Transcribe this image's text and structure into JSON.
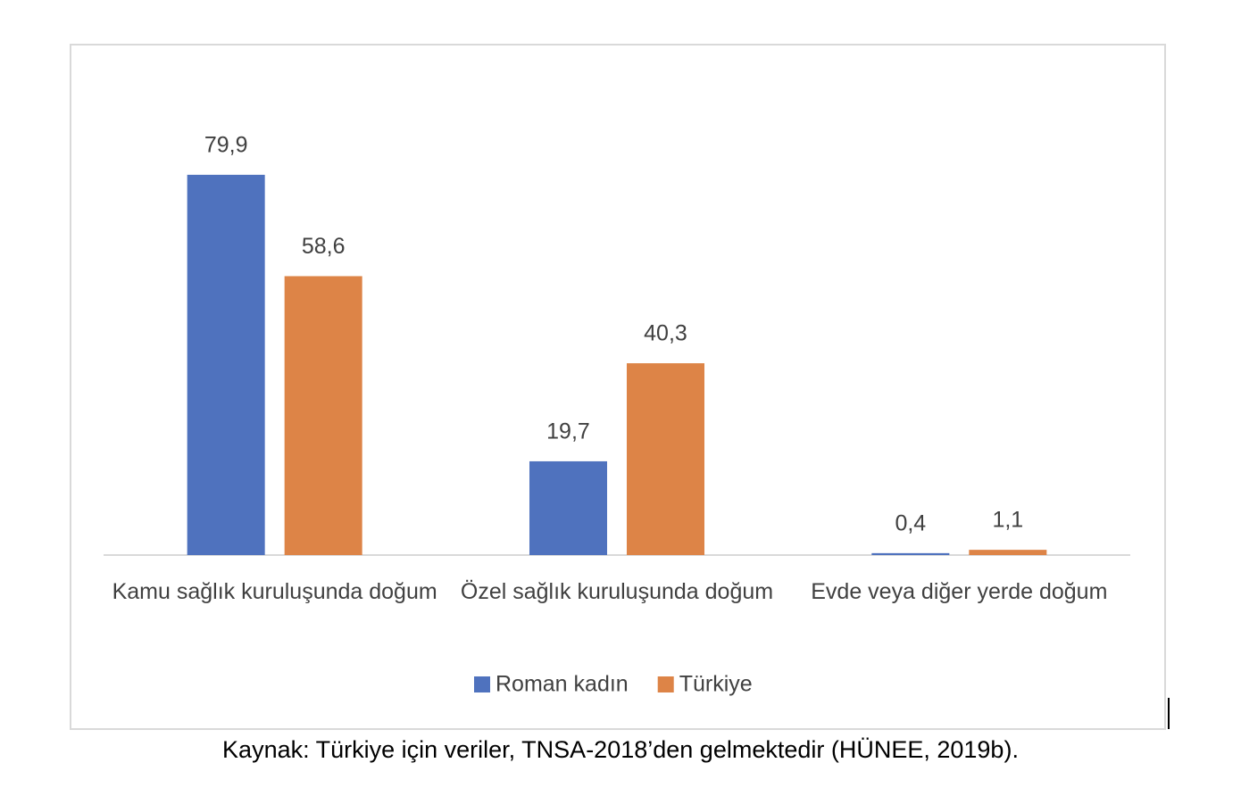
{
  "chart_data": {
    "type": "bar",
    "categories": [
      "Kamu sağlık kuruluşunda doğum",
      "Özel sağlık kuruluşunda doğum",
      "Evde veya diğer yerde doğum"
    ],
    "series": [
      {
        "name": "Roman kadın",
        "color": "#4f72be",
        "values": [
          79.9,
          19.7,
          0.4
        ],
        "value_labels": [
          "79,9",
          "19,7",
          "0,4"
        ]
      },
      {
        "name": "Türkiye",
        "color": "#dd8447",
        "values": [
          58.6,
          40.3,
          1.1
        ],
        "value_labels": [
          "58,6",
          "40,3",
          "1,1"
        ]
      }
    ],
    "ylim": [
      0,
      90
    ],
    "legend": "bottom",
    "caption": "Kaynak: Türkiye için veriler, TNSA-2018’den gelmektedir (HÜNEE, 2019b)."
  }
}
